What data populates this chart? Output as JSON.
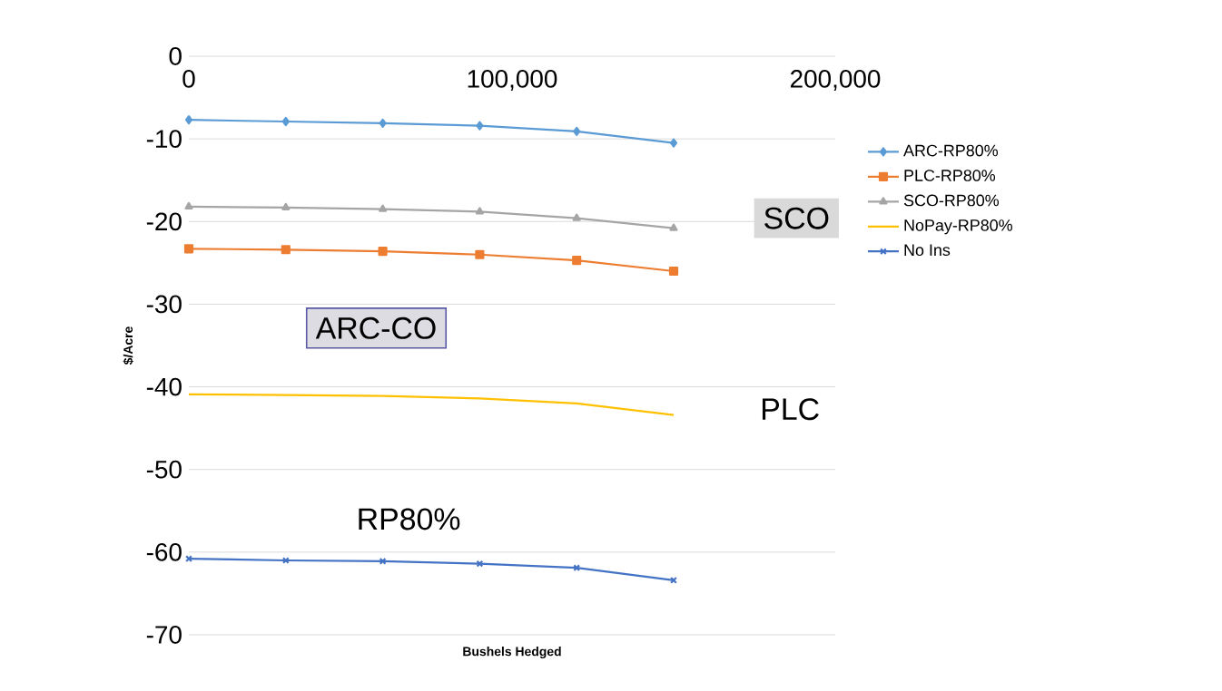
{
  "chart_data": {
    "type": "line",
    "xlabel": "Bushels Hedged",
    "ylabel": "$/Acre",
    "x": [
      0,
      30000,
      60000,
      90000,
      120000,
      150000
    ],
    "series": [
      {
        "name": "ARC-RP80%",
        "color": "#5b9bd5",
        "marker": "diamond",
        "values": [
          -7.7,
          -7.9,
          -8.1,
          -8.4,
          -9.1,
          -10.5
        ]
      },
      {
        "name": "PLC-RP80%",
        "color": "#ed7d31",
        "marker": "square",
        "values": [
          -23.3,
          -23.4,
          -23.6,
          -24.0,
          -24.7,
          -26.0
        ]
      },
      {
        "name": "SCO-RP80%",
        "color": "#a5a5a5",
        "marker": "triangle",
        "values": [
          -18.2,
          -18.3,
          -18.5,
          -18.8,
          -19.6,
          -20.8
        ]
      },
      {
        "name": "NoPay-RP80%",
        "color": "#ffc000",
        "marker": "none",
        "values": [
          -40.9,
          -41.0,
          -41.1,
          -41.4,
          -42.0,
          -43.4
        ]
      },
      {
        "name": "No Ins",
        "color": "#4472c4",
        "marker": "cross",
        "values": [
          -60.8,
          -61.0,
          -61.1,
          -61.4,
          -61.9,
          -63.4
        ]
      }
    ],
    "xlim": [
      0,
      200000
    ],
    "ylim": [
      -70,
      0
    ],
    "xticks": [
      0,
      {
        "value": 100000,
        "label": "100,000"
      },
      {
        "value": 200000,
        "label": "200,000"
      }
    ],
    "yticks": [
      -70,
      -60,
      -50,
      -40,
      -30,
      -20,
      -10,
      0
    ],
    "grid": "y",
    "legend": "right",
    "annotations": [
      "ARC-CO",
      "SCO",
      "PLC",
      "RP80%"
    ]
  }
}
